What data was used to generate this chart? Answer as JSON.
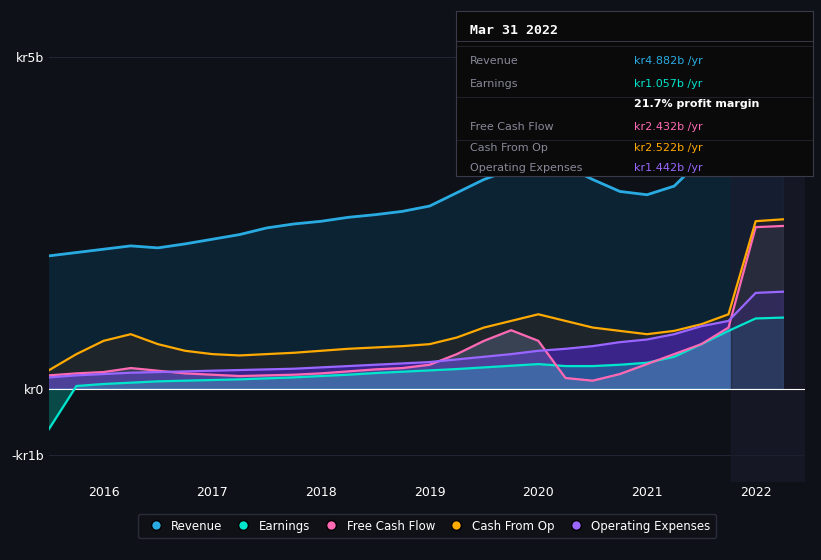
{
  "bg_color": "#0e1117",
  "plot_bg_color": "#0e1117",
  "grid_color": "#252535",
  "title_box": {
    "title": "Mar 31 2022",
    "rows": [
      {
        "label": "Revenue",
        "value": "kr4.882b /yr",
        "value_color": "#29abe2"
      },
      {
        "label": "Earnings",
        "value": "kr1.057b /yr",
        "value_color": "#00e5cc"
      },
      {
        "label": "",
        "value": "21.7% profit margin",
        "value_color": "#ffffff"
      },
      {
        "label": "Free Cash Flow",
        "value": "kr2.432b /yr",
        "value_color": "#ff69b4"
      },
      {
        "label": "Cash From Op",
        "value": "kr2.522b /yr",
        "value_color": "#ffaa00"
      },
      {
        "label": "Operating Expenses",
        "value": "kr1.442b /yr",
        "value_color": "#9966ff"
      }
    ]
  },
  "yticks": [
    "kr5b",
    "kr0",
    "-kr1b"
  ],
  "ytick_values": [
    5000000000,
    0,
    -1000000000
  ],
  "ylim": [
    -1400000000,
    5600000000
  ],
  "xlim": [
    2015.5,
    2022.45
  ],
  "xticks": [
    2016,
    2017,
    2018,
    2019,
    2020,
    2021,
    2022
  ],
  "legend": [
    {
      "label": "Revenue",
      "color": "#29abe2"
    },
    {
      "label": "Earnings",
      "color": "#00e5cc"
    },
    {
      "label": "Free Cash Flow",
      "color": "#ff69b4"
    },
    {
      "label": "Cash From Op",
      "color": "#ffaa00"
    },
    {
      "label": "Operating Expenses",
      "color": "#9966ff"
    }
  ],
  "series": {
    "x": [
      2015.3,
      2015.5,
      2015.75,
      2016.0,
      2016.25,
      2016.5,
      2016.75,
      2017.0,
      2017.25,
      2017.5,
      2017.75,
      2018.0,
      2018.25,
      2018.5,
      2018.75,
      2019.0,
      2019.25,
      2019.5,
      2019.75,
      2020.0,
      2020.25,
      2020.5,
      2020.75,
      2021.0,
      2021.25,
      2021.5,
      2021.75,
      2022.0,
      2022.25
    ],
    "revenue": [
      2000000000.0,
      2000000000.0,
      2050000000.0,
      2100000000.0,
      2150000000.0,
      2120000000.0,
      2180000000.0,
      2250000000.0,
      2320000000.0,
      2420000000.0,
      2480000000.0,
      2520000000.0,
      2580000000.0,
      2620000000.0,
      2670000000.0,
      2750000000.0,
      2950000000.0,
      3150000000.0,
      3300000000.0,
      3450000000.0,
      3350000000.0,
      3150000000.0,
      2970000000.0,
      2920000000.0,
      3050000000.0,
      3450000000.0,
      4100000000.0,
      4880000000.0,
      4950000000.0
    ],
    "earnings": [
      -1050000000.0,
      -600000000.0,
      40000000.0,
      70000000.0,
      90000000.0,
      110000000.0,
      120000000.0,
      130000000.0,
      140000000.0,
      155000000.0,
      170000000.0,
      190000000.0,
      210000000.0,
      235000000.0,
      255000000.0,
      275000000.0,
      295000000.0,
      320000000.0,
      345000000.0,
      370000000.0,
      340000000.0,
      340000000.0,
      360000000.0,
      390000000.0,
      480000000.0,
      670000000.0,
      870000000.0,
      1057000000.0,
      1070000000.0
    ],
    "free_cash": [
      120000000.0,
      200000000.0,
      230000000.0,
      250000000.0,
      310000000.0,
      270000000.0,
      230000000.0,
      210000000.0,
      190000000.0,
      200000000.0,
      210000000.0,
      230000000.0,
      260000000.0,
      290000000.0,
      310000000.0,
      360000000.0,
      520000000.0,
      720000000.0,
      880000000.0,
      720000000.0,
      160000000.0,
      120000000.0,
      220000000.0,
      370000000.0,
      520000000.0,
      670000000.0,
      920000000.0,
      2432000000.0,
      2450000000.0
    ],
    "cash_from_op": [
      60000000.0,
      280000000.0,
      520000000.0,
      720000000.0,
      820000000.0,
      670000000.0,
      570000000.0,
      520000000.0,
      500000000.0,
      520000000.0,
      540000000.0,
      570000000.0,
      600000000.0,
      620000000.0,
      640000000.0,
      670000000.0,
      770000000.0,
      920000000.0,
      1020000000.0,
      1120000000.0,
      1020000000.0,
      920000000.0,
      870000000.0,
      820000000.0,
      870000000.0,
      970000000.0,
      1120000000.0,
      2522000000.0,
      2550000000.0
    ],
    "op_expenses": [
      120000000.0,
      170000000.0,
      200000000.0,
      220000000.0,
      240000000.0,
      250000000.0,
      260000000.0,
      270000000.0,
      280000000.0,
      290000000.0,
      300000000.0,
      320000000.0,
      340000000.0,
      360000000.0,
      380000000.0,
      400000000.0,
      440000000.0,
      480000000.0,
      520000000.0,
      570000000.0,
      600000000.0,
      640000000.0,
      700000000.0,
      740000000.0,
      820000000.0,
      940000000.0,
      1020000000.0,
      1442000000.0,
      1460000000.0
    ]
  },
  "highlight_x_start": 2021.77,
  "highlight_x_end": 2022.45,
  "highlight_color": "#1c1c2e"
}
